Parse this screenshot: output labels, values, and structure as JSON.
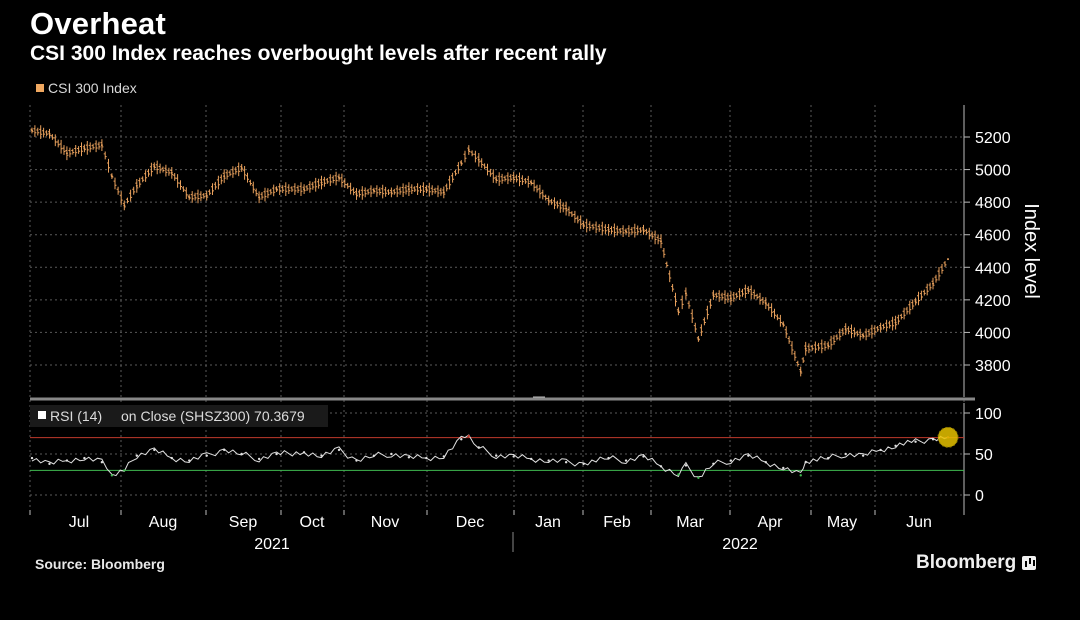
{
  "title": "Overheat",
  "subtitle": "CSI 300 Index reaches overbought levels after recent rally",
  "legend": {
    "label": "CSI 300 Index",
    "color": "#f0a860"
  },
  "source": "Source: Bloomberg",
  "brand": "Bloomberg",
  "colors": {
    "price": "#e8a05c",
    "rsi": "#e0e0e0",
    "overbought": "#c0392b",
    "oversold": "#3fb950",
    "marker": "#e6c200",
    "grid": "#5a5a5a"
  },
  "chart_data": [
    {
      "type": "line",
      "style": "ohlc-bars",
      "ylabel": "Index level",
      "ylim": [
        3620,
        5400
      ],
      "y_ticks": [
        3800,
        4000,
        4200,
        4400,
        4600,
        4800,
        5000,
        5200
      ],
      "x_ticks": [
        "Jul",
        "Aug",
        "Sep",
        "Oct",
        "Nov",
        "Dec",
        "Jan",
        "Feb",
        "Mar",
        "Apr",
        "May",
        "Jun"
      ],
      "year_labels": [
        "2021",
        "2022"
      ],
      "series": [
        {
          "name": "CSI 300 Index",
          "x": [
            "2021-06-21",
            "2021-06-28",
            "2021-07-05",
            "2021-07-12",
            "2021-07-19",
            "2021-07-23",
            "2021-07-28",
            "2021-08-02",
            "2021-08-09",
            "2021-08-16",
            "2021-08-23",
            "2021-08-30",
            "2021-09-06",
            "2021-09-13",
            "2021-09-20",
            "2021-09-27",
            "2021-10-08",
            "2021-10-15",
            "2021-10-22",
            "2021-10-29",
            "2021-11-05",
            "2021-11-12",
            "2021-11-19",
            "2021-11-26",
            "2021-12-03",
            "2021-12-10",
            "2021-12-13",
            "2021-12-17",
            "2021-12-24",
            "2021-12-31",
            "2022-01-07",
            "2022-01-14",
            "2022-01-21",
            "2022-01-28",
            "2022-02-07",
            "2022-02-14",
            "2022-02-21",
            "2022-02-28",
            "2022-03-07",
            "2022-03-10",
            "2022-03-15",
            "2022-03-21",
            "2022-03-28",
            "2022-04-04",
            "2022-04-11",
            "2022-04-18",
            "2022-04-25",
            "2022-04-27",
            "2022-05-06",
            "2022-05-13",
            "2022-05-20",
            "2022-05-27",
            "2022-06-02",
            "2022-06-10",
            "2022-06-17",
            "2022-06-23"
          ],
          "values": [
            5240,
            5220,
            5100,
            5130,
            5150,
            4960,
            4780,
            4900,
            5020,
            4980,
            4830,
            4840,
            4960,
            5010,
            4830,
            4880,
            4880,
            4920,
            4950,
            4850,
            4870,
            4860,
            4880,
            4880,
            4860,
            5040,
            5120,
            5060,
            4940,
            4950,
            4920,
            4810,
            4760,
            4660,
            4630,
            4620,
            4630,
            4560,
            4130,
            4240,
            3960,
            4230,
            4210,
            4260,
            4180,
            4050,
            3760,
            3900,
            3920,
            4020,
            3980,
            4030,
            4060,
            4190,
            4300,
            4450
          ]
        }
      ]
    },
    {
      "type": "line",
      "title": "RSI (14)",
      "label_text": "on Close (SHSZ300) 70.3679",
      "ylim": [
        -5,
        110
      ],
      "y_ticks": [
        0,
        50,
        100
      ],
      "overbought": 70,
      "oversold": 30,
      "latest": 70.3679,
      "series": [
        {
          "name": "RSI (14)",
          "x": [
            "2021-06-21",
            "2021-06-28",
            "2021-07-05",
            "2021-07-12",
            "2021-07-19",
            "2021-07-23",
            "2021-07-28",
            "2021-08-02",
            "2021-08-09",
            "2021-08-16",
            "2021-08-23",
            "2021-08-30",
            "2021-09-06",
            "2021-09-13",
            "2021-09-20",
            "2021-09-27",
            "2021-10-08",
            "2021-10-15",
            "2021-10-22",
            "2021-10-29",
            "2021-11-05",
            "2021-11-12",
            "2021-11-19",
            "2021-11-26",
            "2021-12-03",
            "2021-12-10",
            "2021-12-13",
            "2021-12-17",
            "2021-12-24",
            "2021-12-31",
            "2022-01-07",
            "2022-01-14",
            "2022-01-21",
            "2022-01-28",
            "2022-02-07",
            "2022-02-14",
            "2022-02-21",
            "2022-02-28",
            "2022-03-07",
            "2022-03-10",
            "2022-03-15",
            "2022-03-21",
            "2022-03-28",
            "2022-04-04",
            "2022-04-11",
            "2022-04-18",
            "2022-04-25",
            "2022-04-27",
            "2022-05-06",
            "2022-05-13",
            "2022-05-20",
            "2022-05-27",
            "2022-06-02",
            "2022-06-10",
            "2022-06-17",
            "2022-06-23"
          ],
          "values": [
            45,
            38,
            42,
            45,
            40,
            24,
            30,
            48,
            55,
            45,
            42,
            48,
            55,
            50,
            44,
            50,
            52,
            48,
            55,
            42,
            48,
            50,
            46,
            45,
            47,
            68,
            72,
            58,
            48,
            47,
            44,
            42,
            40,
            38,
            45,
            42,
            47,
            35,
            25,
            36,
            21,
            38,
            42,
            48,
            40,
            33,
            24,
            40,
            45,
            50,
            48,
            55,
            60,
            65,
            68,
            70.4
          ]
        }
      ]
    }
  ]
}
